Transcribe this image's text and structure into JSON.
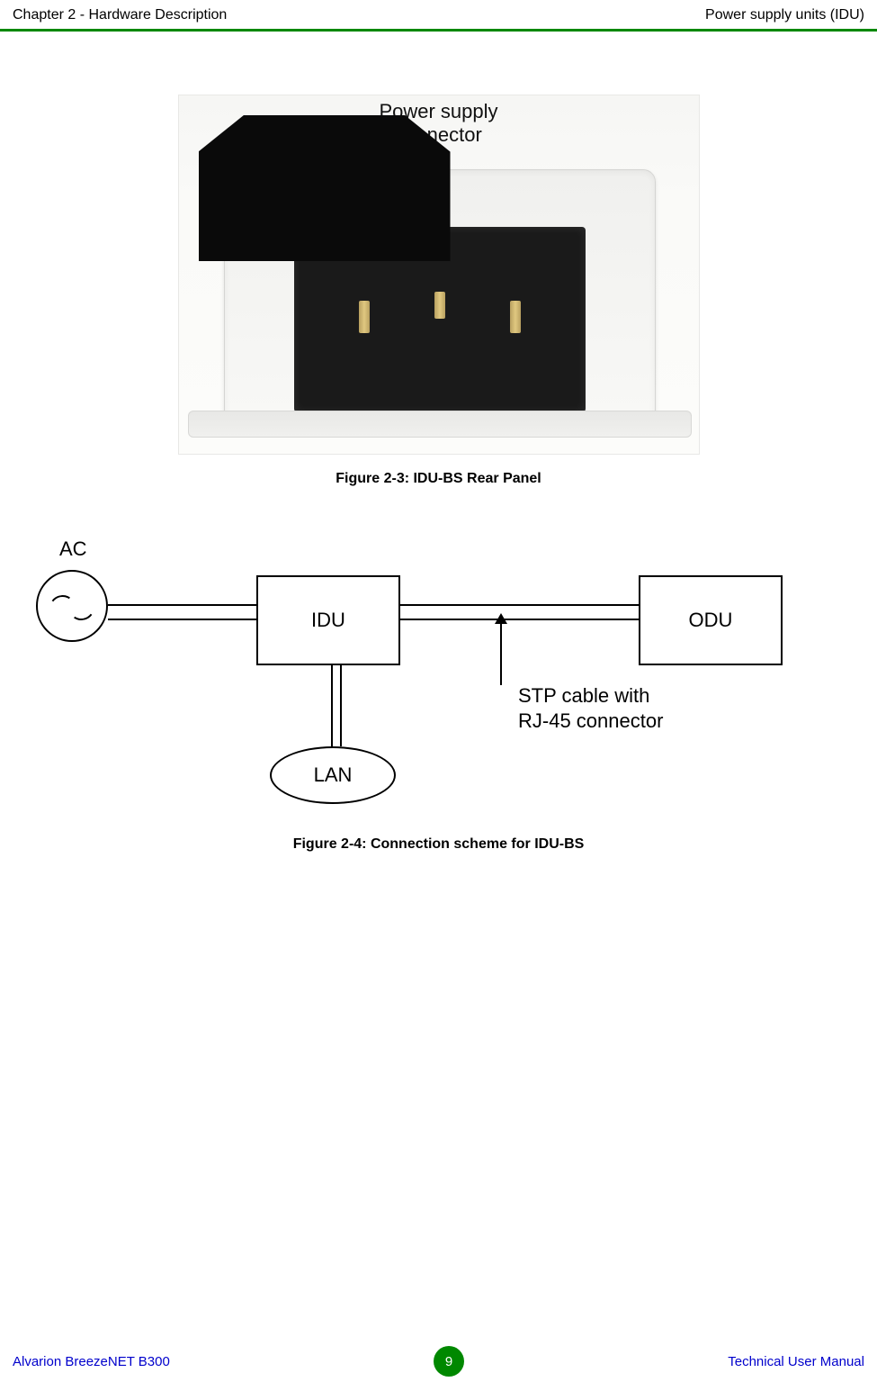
{
  "header": {
    "left": "Chapter 2 - Hardware Description",
    "right": "Power supply units (IDU)"
  },
  "figure1": {
    "label_line1": "Power supply",
    "label_line2": "connector",
    "caption": "Figure 2-3: IDU-BS Rear Panel",
    "body_color": "#f4f4f2",
    "connector_color": "#1a1a1a",
    "pin_color": "#d4b870"
  },
  "figure2": {
    "ac_label": "AC",
    "idu_label": "IDU",
    "odu_label": "ODU",
    "lan_label": "LAN",
    "stp_line1": "STP cable with",
    "stp_line2": "RJ-45 connector",
    "caption": "Figure 2-4: Connection scheme for IDU-BS"
  },
  "footer": {
    "left": "Alvarion BreezeNET B300",
    "page": "9",
    "right": "Technical User Manual",
    "badge_color": "#008800",
    "link_color": "#0000cc"
  },
  "colors": {
    "header_rule": "#008800",
    "text": "#000000",
    "background": "#ffffff"
  }
}
